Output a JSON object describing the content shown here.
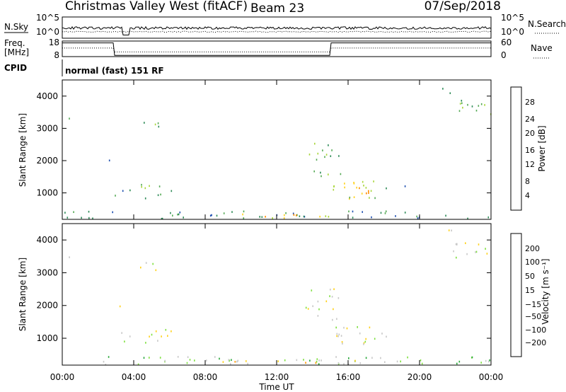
{
  "header": {
    "station": "Christmas Valley West (fitACF)",
    "beam": "Beam 23",
    "date": "07/Sep/2018"
  },
  "top_panels": {
    "nsky_label": "N.Sky",
    "nsky_ticks": [
      "10^5",
      "10^0"
    ],
    "nsearch_label": "N.Search",
    "nsearch_ticks": [
      "10^5",
      "10^0"
    ],
    "freq_label": "Freq.",
    "freq_unit": "[MHz]",
    "freq_ticks": [
      "18",
      "8"
    ],
    "nave_label": "Nave",
    "nave_ticks": [
      "60",
      "0"
    ],
    "cpid_label": "CPID",
    "cpid_text": "normal (fast) 151 RF"
  },
  "axes": {
    "ylabel": "Slant Range [km]",
    "yticks": [
      "4000",
      "3000",
      "2000",
      "1000"
    ],
    "xticks": [
      "00:00",
      "04:00",
      "08:00",
      "12:00",
      "16:00",
      "20:00",
      "00:00"
    ],
    "xlabel": "Time UT"
  },
  "colors": {
    "power": [
      "#0000ff",
      "#1f4fb0",
      "#2e8b57",
      "#55aa55",
      "#a8d63a",
      "#ffd21a",
      "#ff8c00",
      "#ff3b00",
      "#e60000"
    ],
    "velocity": [
      "#e00000",
      "#ff5a00",
      "#ff9a00",
      "#ffd21a",
      "#c8c8c8",
      "#7fe040",
      "#2aa83a",
      "#2f5fa8",
      "#1a3fb8"
    ]
  },
  "colorbars": {
    "power": {
      "label": "Power [dB]",
      "ticks": [
        "28",
        "24",
        "20",
        "16",
        "12",
        "8",
        "4"
      ]
    },
    "velocity": {
      "label": "Velocity [m s⁻¹]",
      "ticks": [
        "200",
        "100",
        "50",
        "15",
        "−15",
        "−50",
        "−100",
        "−200"
      ]
    }
  },
  "chart_data": [
    {
      "type": "heatmap",
      "title": "Power",
      "xlabel": "Time UT",
      "ylabel": "Slant Range [km]",
      "xlim": [
        0,
        24
      ],
      "ylim": [
        180,
        4500
      ],
      "colorbar": {
        "label": "Power [dB]",
        "range": [
          0,
          32
        ]
      },
      "regions": [
        {
          "t": [
            0.3,
            0.9
          ],
          "r": [
            3250,
            3500
          ],
          "level": 3,
          "density": 0.35
        },
        {
          "t": [
            2.6,
            3.4
          ],
          "r": [
            1900,
            2100
          ],
          "level": 2,
          "density": 0.4
        },
        {
          "t": [
            4.3,
            5.6
          ],
          "r": [
            2900,
            3350
          ],
          "level": 3,
          "density": 0.45
        },
        {
          "t": [
            2.8,
            4.2
          ],
          "r": [
            850,
            1150
          ],
          "level": 2,
          "density": 0.45
        },
        {
          "t": [
            4.4,
            6.2
          ],
          "r": [
            800,
            1250
          ],
          "level": 3,
          "density": 0.75
        },
        {
          "t": [
            13.5,
            15.6
          ],
          "r": [
            1500,
            2600
          ],
          "level": 3,
          "density": 0.45
        },
        {
          "t": [
            15.0,
            17.6
          ],
          "r": [
            800,
            1350
          ],
          "level": 4,
          "density": 0.85
        },
        {
          "t": [
            16.0,
            17.2
          ],
          "r": [
            850,
            1150
          ],
          "level": 6,
          "density": 0.9
        },
        {
          "t": [
            17.8,
            19.2
          ],
          "r": [
            1000,
            1200
          ],
          "level": 2,
          "density": 0.45
        },
        {
          "t": [
            21.1,
            22.0
          ],
          "r": [
            3900,
            4300
          ],
          "level": 2,
          "density": 0.45
        },
        {
          "t": [
            21.8,
            24.0
          ],
          "r": [
            3400,
            3900
          ],
          "level": 3,
          "density": 0.7
        },
        {
          "t": [
            0.0,
            24.0
          ],
          "r": [
            180,
            420
          ],
          "level": 2,
          "density": 0.55
        },
        {
          "t": [
            10.0,
            17.0
          ],
          "r": [
            180,
            320
          ],
          "level": 5,
          "density": 0.7
        }
      ]
    },
    {
      "type": "heatmap",
      "title": "Velocity",
      "xlabel": "Time UT",
      "ylabel": "Slant Range [km]",
      "xlim": [
        0,
        24
      ],
      "ylim": [
        180,
        4500
      ],
      "colorbar": {
        "label": "Velocity [m s⁻¹]",
        "range": [
          -200,
          200
        ]
      },
      "regions": [
        {
          "t": [
            0.3,
            0.9
          ],
          "r": [
            3250,
            3500
          ],
          "level": 4,
          "density": 0.35
        },
        {
          "t": [
            2.6,
            3.4
          ],
          "r": [
            1900,
            2100
          ],
          "level": 4,
          "density": 0.4
        },
        {
          "t": [
            4.3,
            5.6
          ],
          "r": [
            2900,
            3350
          ],
          "level": 4,
          "density": 0.45
        },
        {
          "t": [
            2.8,
            4.2
          ],
          "r": [
            850,
            1150
          ],
          "level": 5,
          "density": 0.45
        },
        {
          "t": [
            4.4,
            6.2
          ],
          "r": [
            800,
            1250
          ],
          "level": 4,
          "density": 0.75
        },
        {
          "t": [
            13.5,
            15.6
          ],
          "r": [
            1500,
            2600
          ],
          "level": 4,
          "density": 0.45
        },
        {
          "t": [
            15.0,
            17.6
          ],
          "r": [
            800,
            1350
          ],
          "level": 4,
          "density": 0.85
        },
        {
          "t": [
            17.8,
            19.2
          ],
          "r": [
            1000,
            1200
          ],
          "level": 4,
          "density": 0.45
        },
        {
          "t": [
            21.1,
            22.0
          ],
          "r": [
            3900,
            4300
          ],
          "level": 4,
          "density": 0.45
        },
        {
          "t": [
            21.8,
            24.0
          ],
          "r": [
            3400,
            3900
          ],
          "level": 4,
          "density": 0.7
        },
        {
          "t": [
            0.0,
            24.0
          ],
          "r": [
            180,
            420
          ],
          "level": 5,
          "density": 0.6
        },
        {
          "t": [
            8.0,
            17.0
          ],
          "r": [
            180,
            330
          ],
          "level": 3,
          "density": 0.7
        }
      ]
    }
  ]
}
